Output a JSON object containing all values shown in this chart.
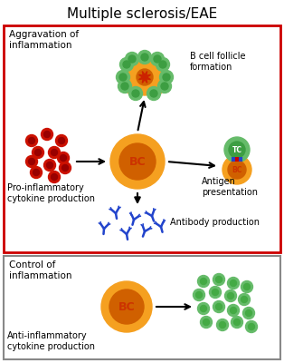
{
  "title": "Multiple sclerosis/EAE",
  "title_fontsize": 11,
  "bg_color": "#ffffff",
  "red_border_color": "#cc0000",
  "gray_border_color": "#888888",
  "section1_label": "Aggravation of\ninflammation",
  "section2_label": "Control of\ninflammation",
  "bc_color_outer": "#f5a020",
  "bc_color_inner": "#d06000",
  "bc_text": "BC",
  "tc_color_outer": "#66bb6a",
  "tc_color_inner": "#3d9e42",
  "follicle_orange_color": "#f5a020",
  "follicle_green_color": "#66bb6a",
  "follicle_center_color": "#d06000",
  "pro_inflam_color": "#aa0000",
  "anti_inflam_color": "#66bb6a",
  "anti_inflam_inner": "#44aa44",
  "antibody_color": "#2244cc",
  "label_fontsize": 7,
  "bc_label_fontsize": 9
}
